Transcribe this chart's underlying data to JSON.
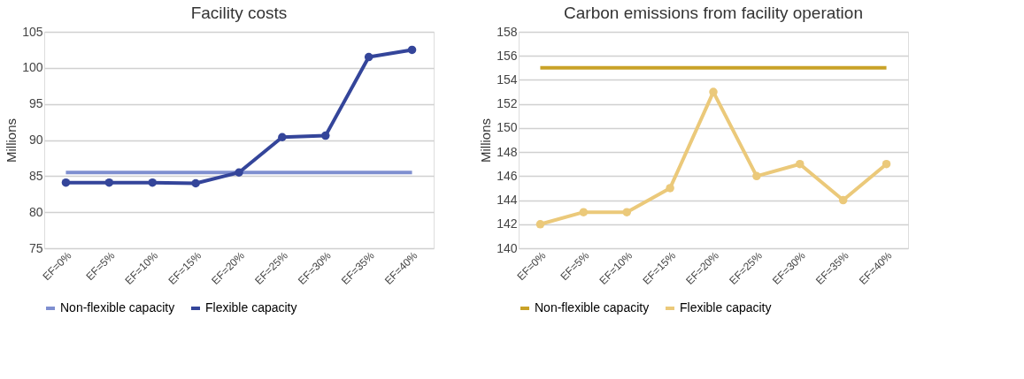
{
  "chart_data": [
    {
      "type": "line",
      "title": "Facility costs",
      "ylabel": "Millions",
      "categories": [
        "EF=0%",
        "EF=5%",
        "EF=10%",
        "EF=15%",
        "EF=20%",
        "EF=25%",
        "EF=30%",
        "EF=35%",
        "EF=40%"
      ],
      "ylim": [
        75,
        105
      ],
      "yticks": [
        75,
        80,
        85,
        90,
        95,
        100,
        105
      ],
      "grid": "y",
      "legend": "bottom",
      "series": [
        {
          "name": "Non-flexible capacity",
          "color": "#7f8fd0",
          "marker": "none",
          "values": [
            85.5,
            85.5,
            85.5,
            85.5,
            85.5,
            85.5,
            85.5,
            85.5,
            85.5
          ]
        },
        {
          "name": "Flexible capacity",
          "color": "#34459a",
          "marker": "circle",
          "values": [
            84.1,
            84.1,
            84.1,
            84.0,
            85.5,
            90.4,
            90.6,
            101.5,
            102.5
          ]
        }
      ]
    },
    {
      "type": "line",
      "title": "Carbon emissions from facility operation",
      "ylabel": "Millions",
      "categories": [
        "EF=0%",
        "EF=5%",
        "EF=10%",
        "EF=15%",
        "EF=20%",
        "EF=25%",
        "EF=30%",
        "EF=35%",
        "EF=40%"
      ],
      "ylim": [
        140,
        158
      ],
      "yticks": [
        140,
        142,
        144,
        146,
        148,
        150,
        152,
        154,
        156,
        158
      ],
      "grid": "y",
      "legend": "bottom",
      "series": [
        {
          "name": "Non-flexible capacity",
          "color": "#c9a227",
          "marker": "none",
          "values": [
            155,
            155,
            155,
            155,
            155,
            155,
            155,
            155,
            155
          ]
        },
        {
          "name": "Flexible capacity",
          "color": "#ebc97a",
          "marker": "circle",
          "values": [
            142,
            143,
            143,
            145,
            153,
            146,
            147,
            144,
            147
          ]
        }
      ]
    }
  ]
}
